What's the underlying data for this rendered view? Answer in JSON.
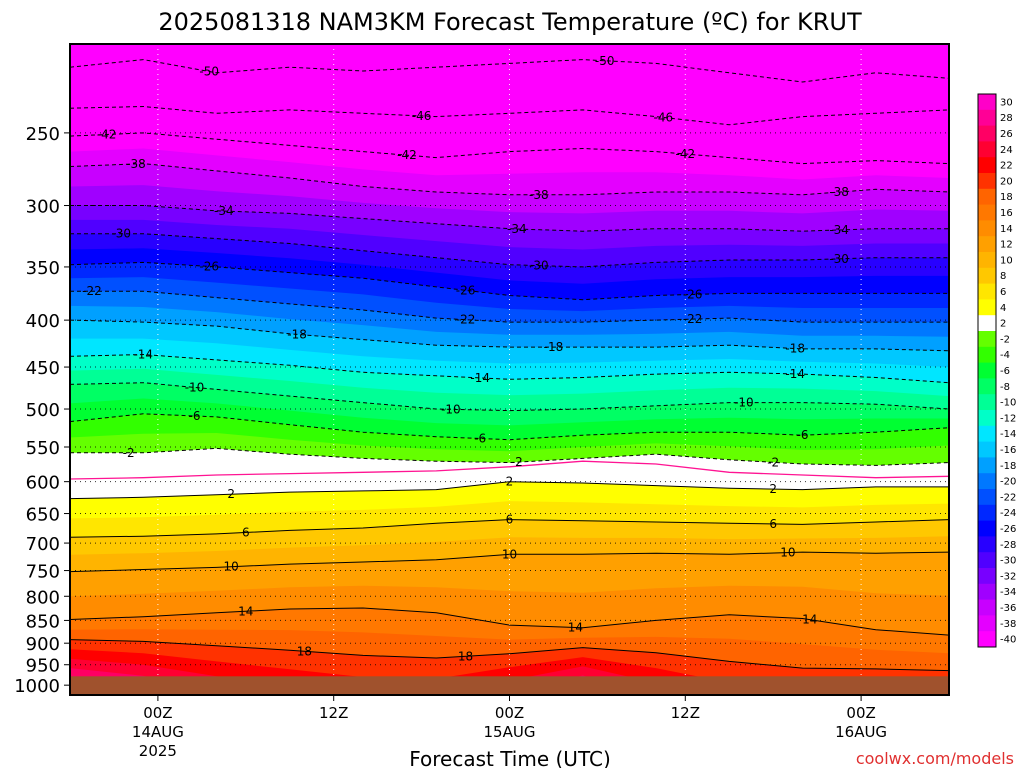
{
  "chart_data": {
    "type": "heatmap",
    "title": "2025081318 NAM3KM Forecast Temperature (ºC) for KRUT",
    "xlabel": "Forecast Time (UTC)",
    "ylabel": "",
    "x_ticks": [
      {
        "label": "00Z",
        "sub": [
          "14AUG",
          "2025"
        ],
        "hour": 6
      },
      {
        "label": "12Z",
        "sub": [],
        "hour": 18
      },
      {
        "label": "00Z",
        "sub": [
          "15AUG"
        ],
        "hour": 30
      },
      {
        "label": "12Z",
        "sub": [],
        "hour": 42
      },
      {
        "label": "00Z",
        "sub": [
          "16AUG"
        ],
        "hour": 54
      }
    ],
    "xlim_hours": [
      0,
      60
    ],
    "y_ticks": [
      250,
      300,
      350,
      400,
      450,
      500,
      550,
      600,
      650,
      700,
      750,
      800,
      850,
      900,
      950,
      1000
    ],
    "ylim_hpa": [
      200,
      1025
    ],
    "y_scale": "log",
    "ground_level_hpa": 978,
    "ground_color": "#a0522d",
    "colorbar": {
      "levels": [
        -40,
        -38,
        -36,
        -34,
        -32,
        -30,
        -28,
        -26,
        -24,
        -22,
        -20,
        -18,
        -16,
        -14,
        -12,
        -10,
        -8,
        -6,
        -4,
        -2,
        2,
        4,
        6,
        8,
        10,
        12,
        14,
        16,
        18,
        20,
        22,
        24,
        26,
        28,
        30
      ],
      "labels": [
        "30",
        "28",
        "26",
        "24",
        "22",
        "20",
        "18",
        "16",
        "14",
        "12",
        "10",
        "8",
        "6",
        "4",
        "2",
        "-2",
        "-4",
        "-6",
        "-8",
        "-10",
        "-12",
        "-14",
        "-16",
        "-18",
        "-20",
        "-22",
        "-24",
        "-26",
        "-28",
        "-30",
        "-32",
        "-34",
        "-36",
        "-38",
        "-40"
      ],
      "colors": [
        "#ff00ff",
        "#e400ff",
        "#c800ff",
        "#a000ff",
        "#7800ff",
        "#5000ff",
        "#2800ff",
        "#0000ff",
        "#0028ff",
        "#0050ff",
        "#0078ff",
        "#00a0ff",
        "#00c8ff",
        "#00e6ff",
        "#00ffc8",
        "#00ff96",
        "#00ff64",
        "#00ff32",
        "#32ff00",
        "#64ff00",
        "#ffffff",
        "#ffff00",
        "#ffe600",
        "#ffc800",
        "#ffb400",
        "#ffa000",
        "#ff8c00",
        "#ff7800",
        "#ff6400",
        "#ff3200",
        "#ff0000",
        "#ff0032",
        "#ff0064",
        "#ff0096",
        "#ff00c8"
      ]
    },
    "contours": [
      {
        "value": -50,
        "label": "-50",
        "pressures": [
          212,
          208,
          215,
          212,
          214,
          212,
          210,
          208,
          210,
          215,
          220,
          215,
          218
        ]
      },
      {
        "value": -46,
        "label": "-46",
        "pressures": [
          235,
          234,
          238,
          236,
          238,
          240,
          238,
          236,
          240,
          245,
          240,
          238,
          236
        ]
      },
      {
        "value": -42,
        "label": "-42",
        "pressures": [
          252,
          250,
          254,
          258,
          262,
          266,
          262,
          260,
          262,
          266,
          270,
          268,
          270
        ]
      },
      {
        "value": -38,
        "label": "-38",
        "pressures": [
          272,
          270,
          275,
          280,
          286,
          290,
          292,
          292,
          290,
          290,
          292,
          288,
          290
        ]
      },
      {
        "value": -34,
        "label": "-34",
        "pressures": [
          300,
          300,
          304,
          306,
          310,
          314,
          318,
          320,
          318,
          318,
          320,
          318,
          318
        ]
      },
      {
        "value": -30,
        "label": "-30",
        "pressures": [
          322,
          322,
          326,
          330,
          336,
          342,
          348,
          350,
          346,
          344,
          344,
          342,
          342
        ]
      },
      {
        "value": -26,
        "label": "-26",
        "pressures": [
          348,
          346,
          350,
          355,
          360,
          368,
          376,
          380,
          376,
          374,
          374,
          374,
          374
        ]
      },
      {
        "value": -22,
        "label": "-22",
        "pressures": [
          372,
          372,
          378,
          384,
          390,
          398,
          402,
          402,
          400,
          398,
          402,
          402,
          402
        ]
      },
      {
        "value": -18,
        "label": "-18",
        "pressures": [
          400,
          402,
          406,
          414,
          420,
          426,
          428,
          428,
          428,
          426,
          430,
          430,
          432
        ]
      },
      {
        "value": -14,
        "label": "-14",
        "pressures": [
          438,
          436,
          442,
          448,
          456,
          460,
          464,
          462,
          458,
          456,
          458,
          462,
          468
        ]
      },
      {
        "value": -10,
        "label": "-10",
        "pressures": [
          470,
          468,
          476,
          484,
          492,
          500,
          502,
          500,
          496,
          492,
          492,
          494,
          500
        ]
      },
      {
        "value": -6,
        "label": "-6",
        "pressures": [
          516,
          506,
          510,
          520,
          530,
          536,
          540,
          534,
          530,
          530,
          534,
          530,
          524
        ]
      },
      {
        "value": -2,
        "label": "-2",
        "pressures": [
          558,
          558,
          552,
          560,
          566,
          570,
          572,
          566,
          560,
          568,
          574,
          576,
          572
        ]
      },
      {
        "value": 2,
        "label": "2",
        "pressures": [
          626,
          624,
          620,
          616,
          614,
          612,
          600,
          602,
          606,
          610,
          612,
          608,
          608
        ]
      },
      {
        "value": 6,
        "label": "6",
        "pressures": [
          690,
          688,
          684,
          678,
          674,
          666,
          660,
          662,
          664,
          666,
          668,
          664,
          660
        ]
      },
      {
        "value": 10,
        "label": "10",
        "pressures": [
          752,
          748,
          744,
          738,
          734,
          730,
          720,
          720,
          718,
          720,
          716,
          718,
          716
        ]
      },
      {
        "value": 14,
        "label": "14",
        "pressures": [
          848,
          842,
          834,
          826,
          824,
          834,
          860,
          866,
          850,
          838,
          846,
          870,
          882
        ]
      },
      {
        "value": 18,
        "label": "18",
        "pressures": [
          892,
          896,
          906,
          916,
          928,
          934,
          924,
          910,
          922,
          942,
          958,
          960,
          964
        ]
      }
    ],
    "contour_labels": [
      {
        "label": "-50",
        "hour": 9.5
      },
      {
        "label": "-50",
        "hour": 36.5
      },
      {
        "label": "-46",
        "hour": 24
      },
      {
        "label": "-46",
        "hour": 40.5
      },
      {
        "label": "-42",
        "hour": 2.5
      },
      {
        "label": "-42",
        "hour": 23
      },
      {
        "label": "-42",
        "hour": 42
      },
      {
        "label": "-38",
        "hour": 4.5
      },
      {
        "label": "-38",
        "hour": 32
      },
      {
        "label": "-38",
        "hour": 52.5
      },
      {
        "label": "-34",
        "hour": 10.5
      },
      {
        "label": "-34",
        "hour": 30.5
      },
      {
        "label": "-34",
        "hour": 52.5
      },
      {
        "label": "-30",
        "hour": 3.5
      },
      {
        "label": "-30",
        "hour": 32
      },
      {
        "label": "-30",
        "hour": 52.5
      },
      {
        "label": "-26",
        "hour": 9.5
      },
      {
        "label": "-26",
        "hour": 27
      },
      {
        "label": "-26",
        "hour": 42.5
      },
      {
        "label": "-22",
        "hour": 1.5
      },
      {
        "label": "-22",
        "hour": 27
      },
      {
        "label": "-22",
        "hour": 42.5
      },
      {
        "label": "-18",
        "hour": 15.5
      },
      {
        "label": "-18",
        "hour": 33
      },
      {
        "label": "-18",
        "hour": 49.5
      },
      {
        "label": "-14",
        "hour": 5
      },
      {
        "label": "-14",
        "hour": 28
      },
      {
        "label": "-14",
        "hour": 49.5
      },
      {
        "label": "-10",
        "hour": 8.5
      },
      {
        "label": "-10",
        "hour": 26
      },
      {
        "label": "-10",
        "hour": 46
      },
      {
        "label": "-6",
        "hour": 8.5
      },
      {
        "label": "-6",
        "hour": 28
      },
      {
        "label": "-6",
        "hour": 50
      },
      {
        "label": "-2",
        "hour": 4
      },
      {
        "label": "-2",
        "hour": 30.5
      },
      {
        "label": "-2",
        "hour": 48
      },
      {
        "label": "2",
        "hour": 11
      },
      {
        "label": "2",
        "hour": 30
      },
      {
        "label": "2",
        "hour": 48
      },
      {
        "label": "6",
        "hour": 12
      },
      {
        "label": "6",
        "hour": 30
      },
      {
        "label": "6",
        "hour": 48
      },
      {
        "label": "10",
        "hour": 11
      },
      {
        "label": "10",
        "hour": 30
      },
      {
        "label": "10",
        "hour": 49
      },
      {
        "label": "14",
        "hour": 12
      },
      {
        "label": "14",
        "hour": 34.5
      },
      {
        "label": "14",
        "hour": 50.5
      },
      {
        "label": "18",
        "hour": 16
      },
      {
        "label": "18",
        "hour": 27
      }
    ],
    "freezing_line": {
      "color": "#ff1493",
      "pressures": [
        596,
        594,
        590,
        588,
        586,
        584,
        578,
        570,
        574,
        586,
        590,
        594,
        592
      ]
    }
  },
  "watermark": "coolwx.com/models"
}
